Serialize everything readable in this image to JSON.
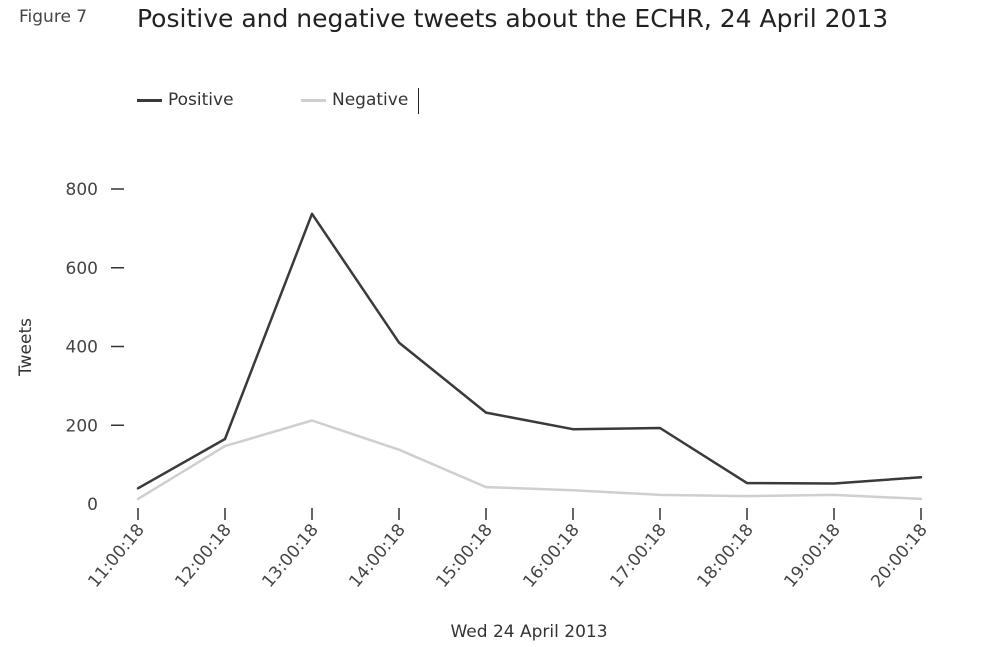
{
  "figure_label": "Figure 7",
  "colors": {
    "positive": "#3a3a3a",
    "negative": "#cfcfcf",
    "axis": "#333333"
  },
  "chart_data": {
    "type": "line",
    "title": "Positive and negative tweets about the ECHR, 24 April 2013",
    "xlabel": "Wed 24 April 2013",
    "ylabel": "Tweets",
    "categories": [
      "11:00:18",
      "12:00:18",
      "13:00:18",
      "14:00:18",
      "15:00:18",
      "16:00:18",
      "17:00:18",
      "18:00:18",
      "19:00:18",
      "20:00:18"
    ],
    "series": [
      {
        "name": "Positive",
        "values": [
          40,
          165,
          737,
          410,
          232,
          190,
          193,
          53,
          52,
          68
        ]
      },
      {
        "name": "Negative",
        "values": [
          13,
          147,
          212,
          138,
          43,
          35,
          23,
          20,
          23,
          13
        ]
      }
    ],
    "ylim": [
      0,
      800
    ],
    "yticks": [
      "0",
      "200",
      "400",
      "600",
      "800"
    ],
    "legend": "top-left",
    "grid": false
  }
}
